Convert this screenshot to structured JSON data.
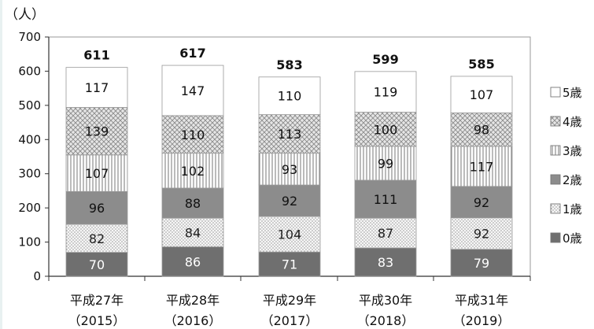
{
  "chart_data": {
    "type": "bar",
    "stacked": true,
    "unit_label": "（人）",
    "categories": [
      [
        "平成27年",
        "（2015）"
      ],
      [
        "平成28年",
        "（2016）"
      ],
      [
        "平成29年",
        "（2017）"
      ],
      [
        "平成30年",
        "（2018）"
      ],
      [
        "平成31年",
        "（2019）"
      ]
    ],
    "totals": [
      611,
      617,
      583,
      599,
      585
    ],
    "series": [
      {
        "name": "0歳",
        "values": [
          70,
          86,
          71,
          83,
          79
        ],
        "fill": "#6f6f6f",
        "pattern": "solid",
        "label_color": "#ffffff"
      },
      {
        "name": "1歳",
        "values": [
          82,
          84,
          104,
          87,
          92
        ],
        "fill": "#f4f4f4",
        "pattern": "fine-dots",
        "label_color": "#222222"
      },
      {
        "name": "2歳",
        "values": [
          96,
          88,
          92,
          111,
          92
        ],
        "fill": "#8c8c8c",
        "pattern": "solid",
        "label_color": "#111111"
      },
      {
        "name": "3歳",
        "values": [
          107,
          102,
          93,
          99,
          117
        ],
        "fill": "#ffffff",
        "pattern": "vertical-lines",
        "label_color": "#111111"
      },
      {
        "name": "4歳",
        "values": [
          139,
          110,
          113,
          100,
          98
        ],
        "fill": "#d8d8d8",
        "pattern": "cross-dots",
        "label_color": "#111111"
      },
      {
        "name": "5歳",
        "values": [
          117,
          147,
          110,
          119,
          107
        ],
        "fill": "#ffffff",
        "pattern": "solid",
        "label_color": "#111111"
      }
    ],
    "ylim": [
      0,
      700
    ],
    "yticks": [
      0,
      100,
      200,
      300,
      400,
      500,
      600,
      700
    ],
    "legend_position": "right",
    "legend_order": [
      "5歳",
      "4歳",
      "3歳",
      "2歳",
      "1歳",
      "0歳"
    ]
  }
}
